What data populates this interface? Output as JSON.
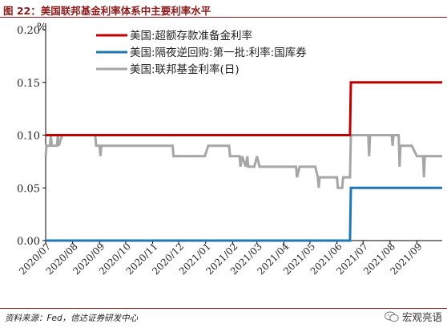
{
  "header": {
    "title": "图 22：美国联邦基金利率体系中主要利率水平"
  },
  "footer": {
    "source": "资料来源：Fed，信达证券研发中心",
    "watermark": "宏观亮语"
  },
  "colors": {
    "accent": "#8b1a1a",
    "ioer": "#c00000",
    "onrrp": "#1f77b4",
    "effr": "#a6a6a6"
  },
  "icons": {
    "watermark_icon": "wechat-icon"
  },
  "chart_data": {
    "type": "line",
    "unit": "%",
    "ylim": [
      0,
      0.2
    ],
    "yticks": [
      "0.00",
      "0.05",
      "0.10",
      "0.15",
      "0.20"
    ],
    "xlim": [
      "2020-07-01",
      "2021-09-30"
    ],
    "categories": [
      "2020/07",
      "2020/08",
      "2020/09",
      "2020/10",
      "2020/11",
      "2020/12",
      "2021/01",
      "2021/02",
      "2021/03",
      "2021/04",
      "2021/05",
      "2021/06",
      "2021/07",
      "2021/08",
      "2021/09"
    ],
    "legend_position": "top-right",
    "series": [
      {
        "name": "美国:超额存款准备金利率",
        "color": "#c00000",
        "points": [
          [
            "2020-07-01",
            0.1
          ],
          [
            "2021-06-16",
            0.1
          ],
          [
            "2021-06-17",
            0.15
          ],
          [
            "2021-09-30",
            0.15
          ]
        ]
      },
      {
        "name": "美国:隔夜逆回购:第一批:利率:国库券",
        "color": "#1f77b4",
        "points": [
          [
            "2020-07-01",
            0.0
          ],
          [
            "2021-06-16",
            0.0
          ],
          [
            "2021-06-17",
            0.05
          ],
          [
            "2021-09-30",
            0.05
          ]
        ]
      },
      {
        "name": "美国:联邦基金利率(日)",
        "color": "#a6a6a6",
        "points": [
          [
            "2020-07-01",
            0.08
          ],
          [
            "2020-07-02",
            0.09
          ],
          [
            "2020-07-06",
            0.09
          ],
          [
            "2020-07-07",
            0.1
          ],
          [
            "2020-07-08",
            0.09
          ],
          [
            "2020-07-14",
            0.09
          ],
          [
            "2020-07-15",
            0.1
          ],
          [
            "2020-07-16",
            0.09
          ],
          [
            "2020-07-20",
            0.1
          ],
          [
            "2020-08-27",
            0.1
          ],
          [
            "2020-08-28",
            0.09
          ],
          [
            "2020-09-01",
            0.09
          ],
          [
            "2020-09-02",
            0.08
          ],
          [
            "2020-09-03",
            0.09
          ],
          [
            "2020-11-24",
            0.09
          ],
          [
            "2020-11-25",
            0.08
          ],
          [
            "2020-12-31",
            0.08
          ],
          [
            "2021-01-04",
            0.09
          ],
          [
            "2021-01-28",
            0.09
          ],
          [
            "2021-01-29",
            0.08
          ],
          [
            "2021-02-09",
            0.08
          ],
          [
            "2021-02-10",
            0.07
          ],
          [
            "2021-02-12",
            0.08
          ],
          [
            "2021-02-16",
            0.07
          ],
          [
            "2021-02-18",
            0.08
          ],
          [
            "2021-02-19",
            0.07
          ],
          [
            "2021-02-26",
            0.07
          ],
          [
            "2021-03-01",
            0.08
          ],
          [
            "2021-03-04",
            0.07
          ],
          [
            "2021-04-15",
            0.07
          ],
          [
            "2021-04-16",
            0.06
          ],
          [
            "2021-04-19",
            0.07
          ],
          [
            "2021-05-07",
            0.07
          ],
          [
            "2021-05-10",
            0.06
          ],
          [
            "2021-05-11",
            0.05
          ],
          [
            "2021-05-12",
            0.06
          ],
          [
            "2021-06-01",
            0.06
          ],
          [
            "2021-06-02",
            0.05
          ],
          [
            "2021-06-07",
            0.05
          ],
          [
            "2021-06-08",
            0.06
          ],
          [
            "2021-06-16",
            0.06
          ],
          [
            "2021-06-17",
            0.1
          ],
          [
            "2021-07-07",
            0.1
          ],
          [
            "2021-07-08",
            0.08
          ],
          [
            "2021-07-09",
            0.1
          ],
          [
            "2021-08-03",
            0.1
          ],
          [
            "2021-08-04",
            0.09
          ],
          [
            "2021-08-05",
            0.1
          ],
          [
            "2021-08-11",
            0.1
          ],
          [
            "2021-08-12",
            0.07
          ],
          [
            "2021-08-13",
            0.09
          ],
          [
            "2021-08-25",
            0.09
          ],
          [
            "2021-08-26",
            0.09
          ],
          [
            "2021-09-01",
            0.08
          ],
          [
            "2021-09-08",
            0.08
          ],
          [
            "2021-09-09",
            0.06
          ],
          [
            "2021-09-10",
            0.08
          ],
          [
            "2021-09-30",
            0.08
          ]
        ]
      }
    ]
  }
}
